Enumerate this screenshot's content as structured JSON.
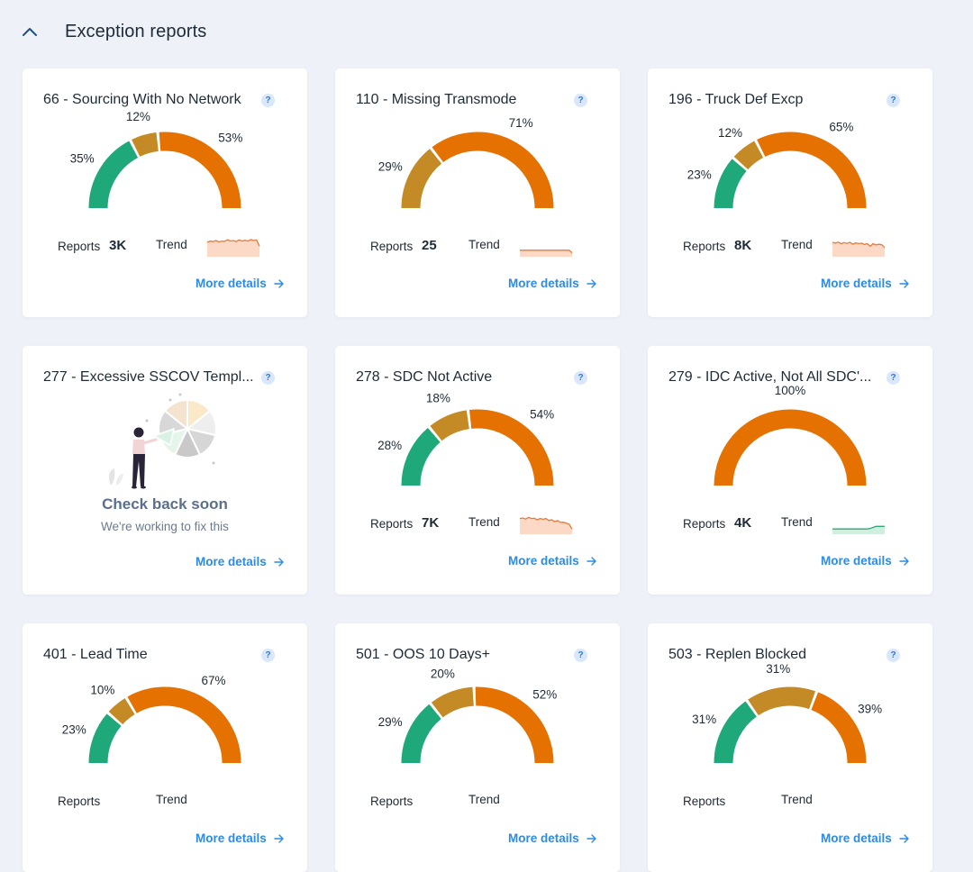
{
  "section": {
    "title": "Exception reports"
  },
  "labels": {
    "reports": "Reports",
    "trend": "Trend",
    "more_details": "More details"
  },
  "colors": {
    "green": "#1fa879",
    "gold": "#c48a25",
    "orange": "#e57100",
    "trend_orange": "#e87a3a",
    "trend_green": "#2ea879",
    "link": "#2b8be6"
  },
  "cards": [
    {
      "title": "66 - Sourcing With No Network",
      "gauge": [
        {
          "value": 35,
          "label": "35%",
          "color": "green"
        },
        {
          "value": 12,
          "label": "12%",
          "color": "gold"
        },
        {
          "value": 53,
          "label": "53%",
          "color": "orange"
        }
      ],
      "reports": "3K",
      "trend_color": "orange",
      "trend": [
        0.55,
        0.6,
        0.58,
        0.62,
        0.57,
        0.6,
        0.59,
        0.65,
        0.6,
        0.62,
        0.58,
        0.64,
        0.6,
        0.63,
        0.6,
        0.66,
        0.62,
        0.64,
        0.4
      ]
    },
    {
      "title": "110 - Missing Transmode",
      "gauge": [
        {
          "value": 29,
          "label": "29%",
          "color": "gold"
        },
        {
          "value": 71,
          "label": "71%",
          "color": "orange"
        }
      ],
      "reports": "25",
      "trend_color": "orange",
      "trend": [
        0.25,
        0.25,
        0.25,
        0.25,
        0.25,
        0.25,
        0.25,
        0.25,
        0.25,
        0.25,
        0.25,
        0.25,
        0.25,
        0.25,
        0.25,
        0.25,
        0.25,
        0.25,
        0.15
      ]
    },
    {
      "title": "196 - Truck Def Excp",
      "gauge": [
        {
          "value": 23,
          "label": "23%",
          "color": "green"
        },
        {
          "value": 12,
          "label": "12%",
          "color": "gold"
        },
        {
          "value": 65,
          "label": "65%",
          "color": "orange"
        }
      ],
      "reports": "8K",
      "trend_color": "orange",
      "trend": [
        0.55,
        0.52,
        0.56,
        0.5,
        0.54,
        0.51,
        0.55,
        0.48,
        0.53,
        0.5,
        0.52,
        0.47,
        0.5,
        0.4,
        0.5,
        0.45,
        0.48,
        0.46,
        0.35
      ]
    },
    {
      "title": "277 - Excessive SSCOV Templ...",
      "empty": {
        "title": "Check back soon",
        "subtitle": "We're working to fix this"
      }
    },
    {
      "title": "278 - SDC Not Active",
      "gauge": [
        {
          "value": 28,
          "label": "28%",
          "color": "green"
        },
        {
          "value": 18,
          "label": "18%",
          "color": "gold"
        },
        {
          "value": 54,
          "label": "54%",
          "color": "orange"
        }
      ],
      "reports": "7K",
      "trend_color": "orange",
      "trend": [
        0.6,
        0.62,
        0.58,
        0.64,
        0.6,
        0.61,
        0.55,
        0.6,
        0.57,
        0.6,
        0.52,
        0.55,
        0.48,
        0.52,
        0.45,
        0.46,
        0.42,
        0.38,
        0.2
      ]
    },
    {
      "title": "279 - IDC Active, Not All SDC'...",
      "gauge": [
        {
          "value": 100,
          "label": "100%",
          "color": "orange"
        }
      ],
      "reports": "4K",
      "trend_color": "green",
      "trend": [
        0.2,
        0.2,
        0.2,
        0.2,
        0.2,
        0.2,
        0.2,
        0.2,
        0.2,
        0.2,
        0.2,
        0.2,
        0.2,
        0.22,
        0.26,
        0.3,
        0.3,
        0.3,
        0.3
      ]
    },
    {
      "title": "401 - Lead Time",
      "gauge": [
        {
          "value": 23,
          "label": "23%",
          "color": "green"
        },
        {
          "value": 10,
          "label": "10%",
          "color": "gold"
        },
        {
          "value": 67,
          "label": "67%",
          "color": "orange"
        }
      ],
      "reports": "",
      "trend_color": "orange",
      "trend": []
    },
    {
      "title": "501 - OOS 10 Days+",
      "gauge": [
        {
          "value": 29,
          "label": "29%",
          "color": "green"
        },
        {
          "value": 20,
          "label": "20%",
          "color": "gold"
        },
        {
          "value": 52,
          "label": "52%",
          "color": "orange"
        }
      ],
      "reports": "",
      "trend_color": "orange",
      "trend": []
    },
    {
      "title": "503 - Replen Blocked",
      "gauge": [
        {
          "value": 31,
          "label": "31%",
          "color": "green"
        },
        {
          "value": 31,
          "label": "31%",
          "color": "gold"
        },
        {
          "value": 39,
          "label": "39%",
          "color": "orange"
        }
      ],
      "reports": "",
      "trend_color": "orange",
      "trend": []
    }
  ]
}
